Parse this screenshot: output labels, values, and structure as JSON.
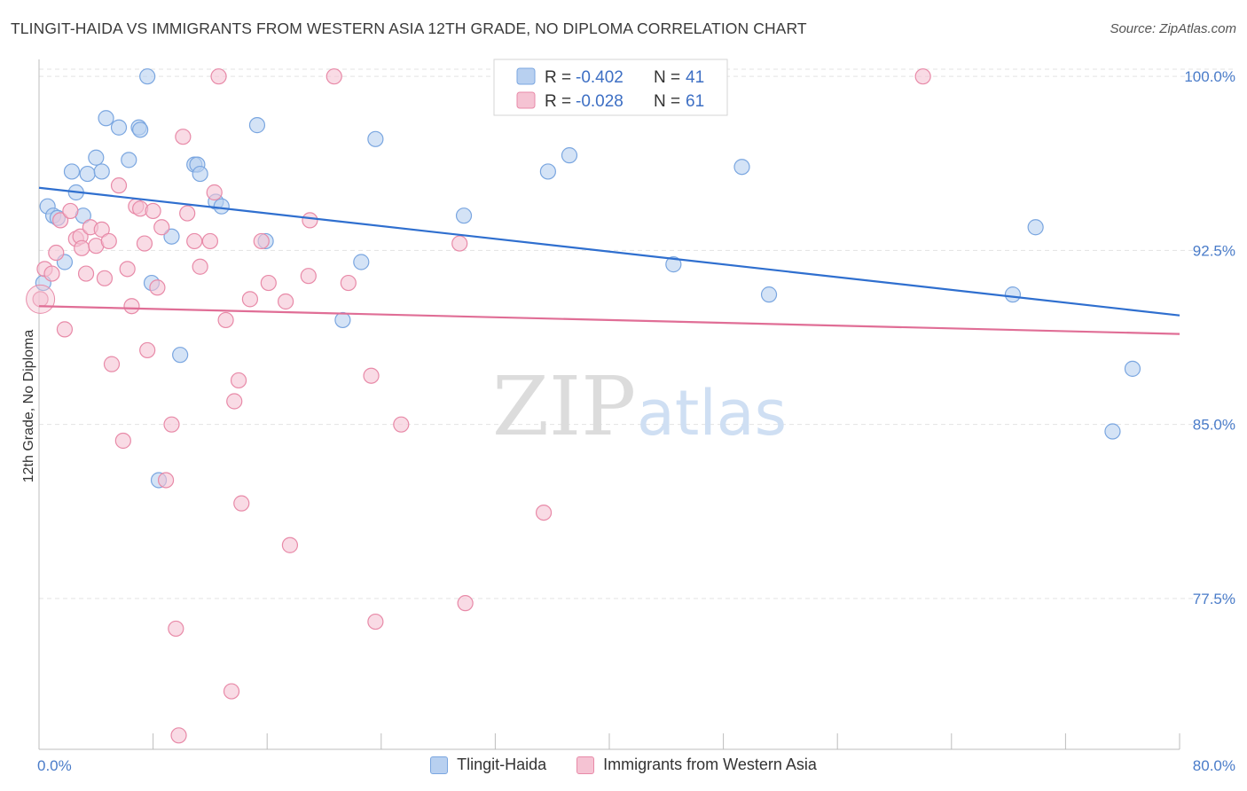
{
  "title": "TLINGIT-HAIDA VS IMMIGRANTS FROM WESTERN ASIA 12TH GRADE, NO DIPLOMA CORRELATION CHART",
  "source": "Source: ZipAtlas.com",
  "watermark": {
    "zip": "ZIP",
    "atlas": "atlas"
  },
  "legend_top": {
    "rows": [
      {
        "r_label": "R =",
        "r_value": "-0.402",
        "n_label": "N =",
        "n_value": "41"
      },
      {
        "r_label": "R =",
        "r_value": "-0.028",
        "n_label": "N =",
        "n_value": "61"
      }
    ]
  },
  "chart_data": {
    "type": "scatter",
    "title": "TLINGIT-HAIDA VS IMMIGRANTS FROM WESTERN ASIA 12TH GRADE, NO DIPLOMA CORRELATION CHART",
    "xlabel": "",
    "ylabel": "12th Grade, No Diploma",
    "xlim": [
      0,
      80
    ],
    "ylim": [
      71,
      101
    ],
    "x_tick_labels": [
      "0.0%",
      "80.0%"
    ],
    "y_ticks": [
      77.5,
      85.0,
      92.5,
      100.0
    ],
    "y_tick_labels": [
      "77.5%",
      "85.0%",
      "92.5%",
      "100.0%"
    ],
    "grid": true,
    "legend_position": "top-center",
    "series": [
      {
        "name": "Tlingit-Haida",
        "color": "#7aa6e0",
        "fill": "#b8d0f0",
        "r": -0.402,
        "n": 41,
        "trend": {
          "x": [
            0,
            80
          ],
          "y": [
            95.2,
            89.7
          ],
          "color": "#2f6fcf"
        },
        "points": [
          [
            0.3,
            91.1
          ],
          [
            0.6,
            94.4
          ],
          [
            1.0,
            94.0
          ],
          [
            1.3,
            93.9
          ],
          [
            1.8,
            92.0
          ],
          [
            2.3,
            95.9
          ],
          [
            2.6,
            95.0
          ],
          [
            3.1,
            94.0
          ],
          [
            3.4,
            95.8
          ],
          [
            4.0,
            96.5
          ],
          [
            4.4,
            95.9
          ],
          [
            4.7,
            98.2
          ],
          [
            5.6,
            97.8
          ],
          [
            6.3,
            96.4
          ],
          [
            7.0,
            97.8
          ],
          [
            7.1,
            97.7
          ],
          [
            7.6,
            100.0
          ],
          [
            7.9,
            91.1
          ],
          [
            8.4,
            82.6
          ],
          [
            9.3,
            93.1
          ],
          [
            9.9,
            88.0
          ],
          [
            10.9,
            96.2
          ],
          [
            11.1,
            96.2
          ],
          [
            11.3,
            95.8
          ],
          [
            12.4,
            94.6
          ],
          [
            12.8,
            94.4
          ],
          [
            15.3,
            97.9
          ],
          [
            15.9,
            92.9
          ],
          [
            21.3,
            89.5
          ],
          [
            22.6,
            92.0
          ],
          [
            23.6,
            97.3
          ],
          [
            29.8,
            94.0
          ],
          [
            35.7,
            95.9
          ],
          [
            37.2,
            96.6
          ],
          [
            44.5,
            91.9
          ],
          [
            49.3,
            96.1
          ],
          [
            51.2,
            90.6
          ],
          [
            68.3,
            90.6
          ],
          [
            69.9,
            93.5
          ],
          [
            75.3,
            84.7
          ],
          [
            76.7,
            87.4
          ]
        ]
      },
      {
        "name": "Immigrants from Western Asia",
        "color": "#e88aa8",
        "fill": "#f5c3d3",
        "r": -0.028,
        "n": 61,
        "trend": {
          "x": [
            0,
            80
          ],
          "y": [
            90.1,
            88.9
          ],
          "color": "#e06e96"
        },
        "points": [
          [
            0.1,
            90.4
          ],
          [
            0.4,
            91.7
          ],
          [
            0.9,
            91.5
          ],
          [
            1.2,
            92.4
          ],
          [
            1.5,
            93.8
          ],
          [
            1.8,
            89.1
          ],
          [
            2.2,
            94.2
          ],
          [
            2.6,
            93.0
          ],
          [
            2.9,
            93.1
          ],
          [
            3.0,
            92.6
          ],
          [
            3.3,
            91.5
          ],
          [
            3.6,
            93.5
          ],
          [
            4.0,
            92.7
          ],
          [
            4.4,
            93.4
          ],
          [
            4.6,
            91.3
          ],
          [
            4.9,
            92.9
          ],
          [
            5.1,
            87.6
          ],
          [
            5.6,
            95.3
          ],
          [
            5.9,
            84.3
          ],
          [
            6.2,
            91.7
          ],
          [
            6.5,
            90.1
          ],
          [
            6.8,
            94.4
          ],
          [
            7.1,
            94.3
          ],
          [
            7.4,
            92.8
          ],
          [
            7.6,
            88.2
          ],
          [
            8.0,
            94.2
          ],
          [
            8.3,
            90.9
          ],
          [
            8.6,
            93.5
          ],
          [
            8.9,
            82.6
          ],
          [
            9.3,
            85.0
          ],
          [
            9.6,
            76.2
          ],
          [
            9.8,
            71.6
          ],
          [
            10.1,
            97.4
          ],
          [
            10.4,
            94.1
          ],
          [
            10.9,
            92.9
          ],
          [
            11.3,
            91.8
          ],
          [
            12.0,
            92.9
          ],
          [
            12.3,
            95.0
          ],
          [
            12.6,
            100.0
          ],
          [
            13.1,
            89.5
          ],
          [
            13.5,
            73.5
          ],
          [
            13.7,
            86.0
          ],
          [
            14.0,
            86.9
          ],
          [
            14.2,
            81.6
          ],
          [
            14.8,
            90.4
          ],
          [
            15.6,
            92.9
          ],
          [
            16.1,
            91.1
          ],
          [
            17.3,
            90.3
          ],
          [
            17.6,
            79.8
          ],
          [
            18.9,
            91.4
          ],
          [
            19.0,
            93.8
          ],
          [
            20.7,
            100.0
          ],
          [
            21.7,
            91.1
          ],
          [
            23.3,
            87.1
          ],
          [
            23.6,
            76.5
          ],
          [
            25.4,
            85.0
          ],
          [
            29.5,
            92.8
          ],
          [
            29.9,
            77.3
          ],
          [
            35.4,
            81.2
          ],
          [
            44.0,
            100.0
          ],
          [
            62.0,
            100.0
          ]
        ]
      }
    ]
  }
}
